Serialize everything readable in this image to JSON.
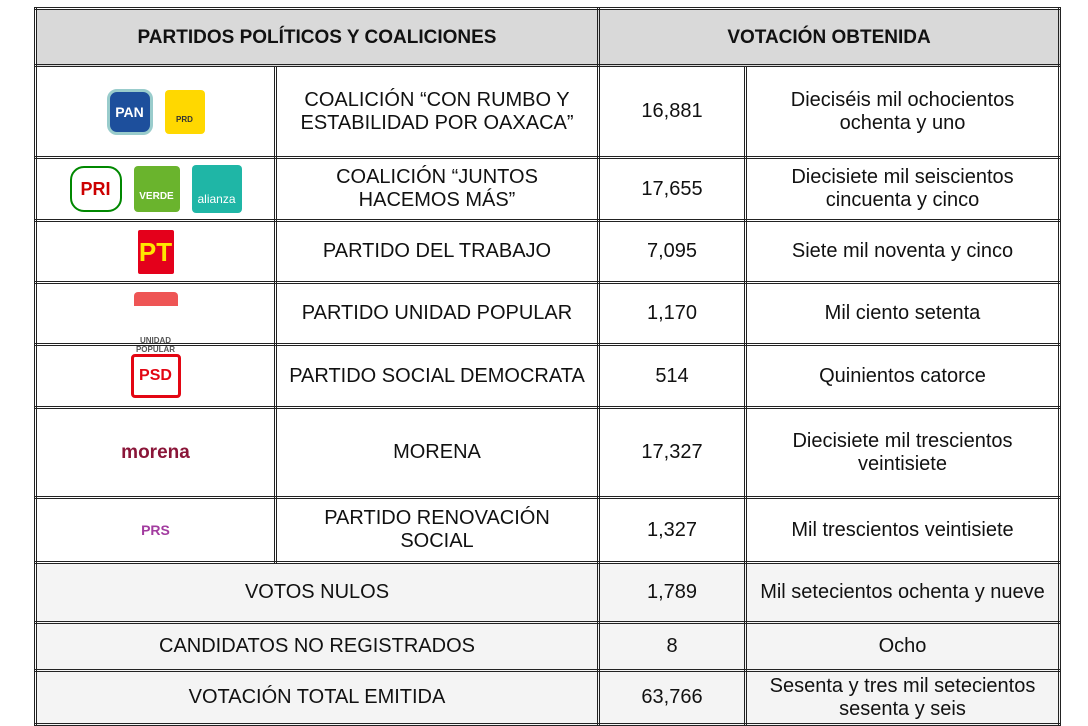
{
  "header": [
    "PARTIDOS POLÍTICOS Y COALICIONES",
    "VOTACIÓN OBTENIDA"
  ],
  "rows": [
    {
      "logos": [
        "PAN",
        "PRD"
      ],
      "name": "COALICIÓN “CON RUMBO Y ESTABILIDAD POR OAXACA”",
      "votes": "16,881",
      "words": "Dieciséis mil ochocientos ochenta y uno"
    },
    {
      "logos": [
        "PRI",
        "VERDE",
        "alianza"
      ],
      "name": "COALICIÓN “JUNTOS HACEMOS MÁS”",
      "votes": "17,655",
      "words": "Diecisiete mil seiscientos cincuenta y cinco"
    },
    {
      "logos": [
        "PT"
      ],
      "name": "PARTIDO DEL TRABAJO",
      "votes": "7,095",
      "words": "Siete mil noventa y cinco"
    },
    {
      "logos": [
        "UNIDAD POPULAR"
      ],
      "name": "PARTIDO UNIDAD POPULAR",
      "votes": "1,170",
      "words": "Mil ciento setenta"
    },
    {
      "logos": [
        "PSD"
      ],
      "name": "PARTIDO SOCIAL DEMOCRATA",
      "votes": "514",
      "words": "Quinientos catorce"
    },
    {
      "logos": [
        "morena"
      ],
      "name": "MORENA",
      "votes": "17,327",
      "words": "Diecisiete mil trescientos veintisiete"
    },
    {
      "logos": [
        "PRS"
      ],
      "name": "PARTIDO RENOVACIÓN SOCIAL",
      "votes": "1,327",
      "words": "Mil trescientos veintisiete"
    }
  ],
  "totals": [
    {
      "name": "VOTOS NULOS",
      "votes": "1,789",
      "words": "Mil setecientos ochenta y nueve"
    },
    {
      "name": "CANDIDATOS NO REGISTRADOS",
      "votes": "8",
      "words": "Ocho"
    },
    {
      "name": "VOTACIÓN TOTAL EMITIDA",
      "votes": "63,766",
      "words": "Sesenta y tres mil setecientos sesenta y seis"
    }
  ]
}
